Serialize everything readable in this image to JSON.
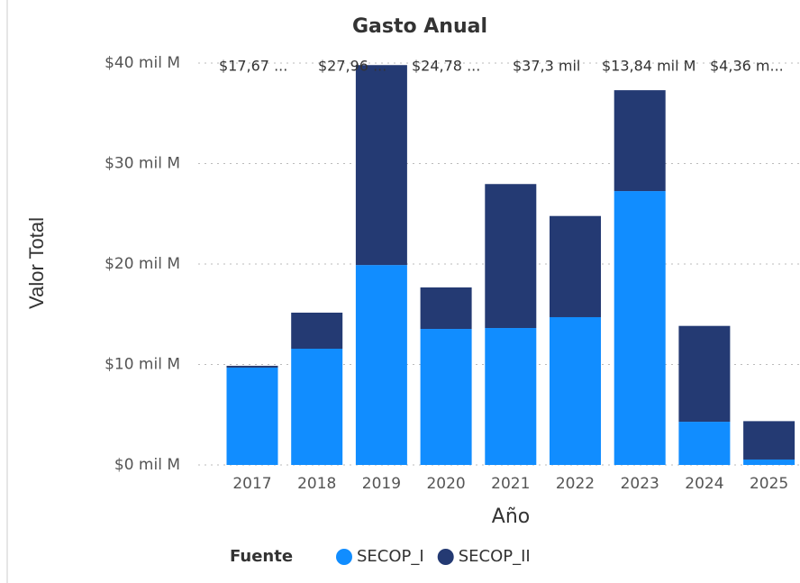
{
  "chart_data": {
    "type": "bar",
    "stacked": true,
    "title": "Gasto Anual",
    "x_label": "Año",
    "y_label": "Valor Total",
    "categories": [
      "2017",
      "2018",
      "2019",
      "2020",
      "2021",
      "2022",
      "2023",
      "2024",
      "2025"
    ],
    "series": [
      {
        "name": "SECOP_I",
        "color": "#118dff",
        "values": [
          9.69,
          11.57,
          19.9,
          13.54,
          13.63,
          14.71,
          27.26,
          4.3,
          0.54
        ]
      },
      {
        "name": "SECOP_II",
        "color": "#243a73",
        "values": [
          0.18,
          3.59,
          19.9,
          4.13,
          14.33,
          10.07,
          10.04,
          9.54,
          3.82
        ]
      }
    ],
    "annotations": [
      "$17,67 ...",
      "$27,96 ...",
      "$24,78 ...",
      "$37,3 mil",
      "$13,84 mil M",
      "$4,36 m..."
    ],
    "ylim": [
      0,
      40
    ],
    "yticks": [
      {
        "value": 0,
        "label": "$0 mil M"
      },
      {
        "value": 10,
        "label": "$10 mil M"
      },
      {
        "value": 20,
        "label": "$20 mil M"
      },
      {
        "value": 30,
        "label": "$30 mil M"
      },
      {
        "value": 40,
        "label": "$40 mil M"
      }
    ],
    "grid": true,
    "legend_title": "Fuente",
    "legend_position": "bottom"
  }
}
